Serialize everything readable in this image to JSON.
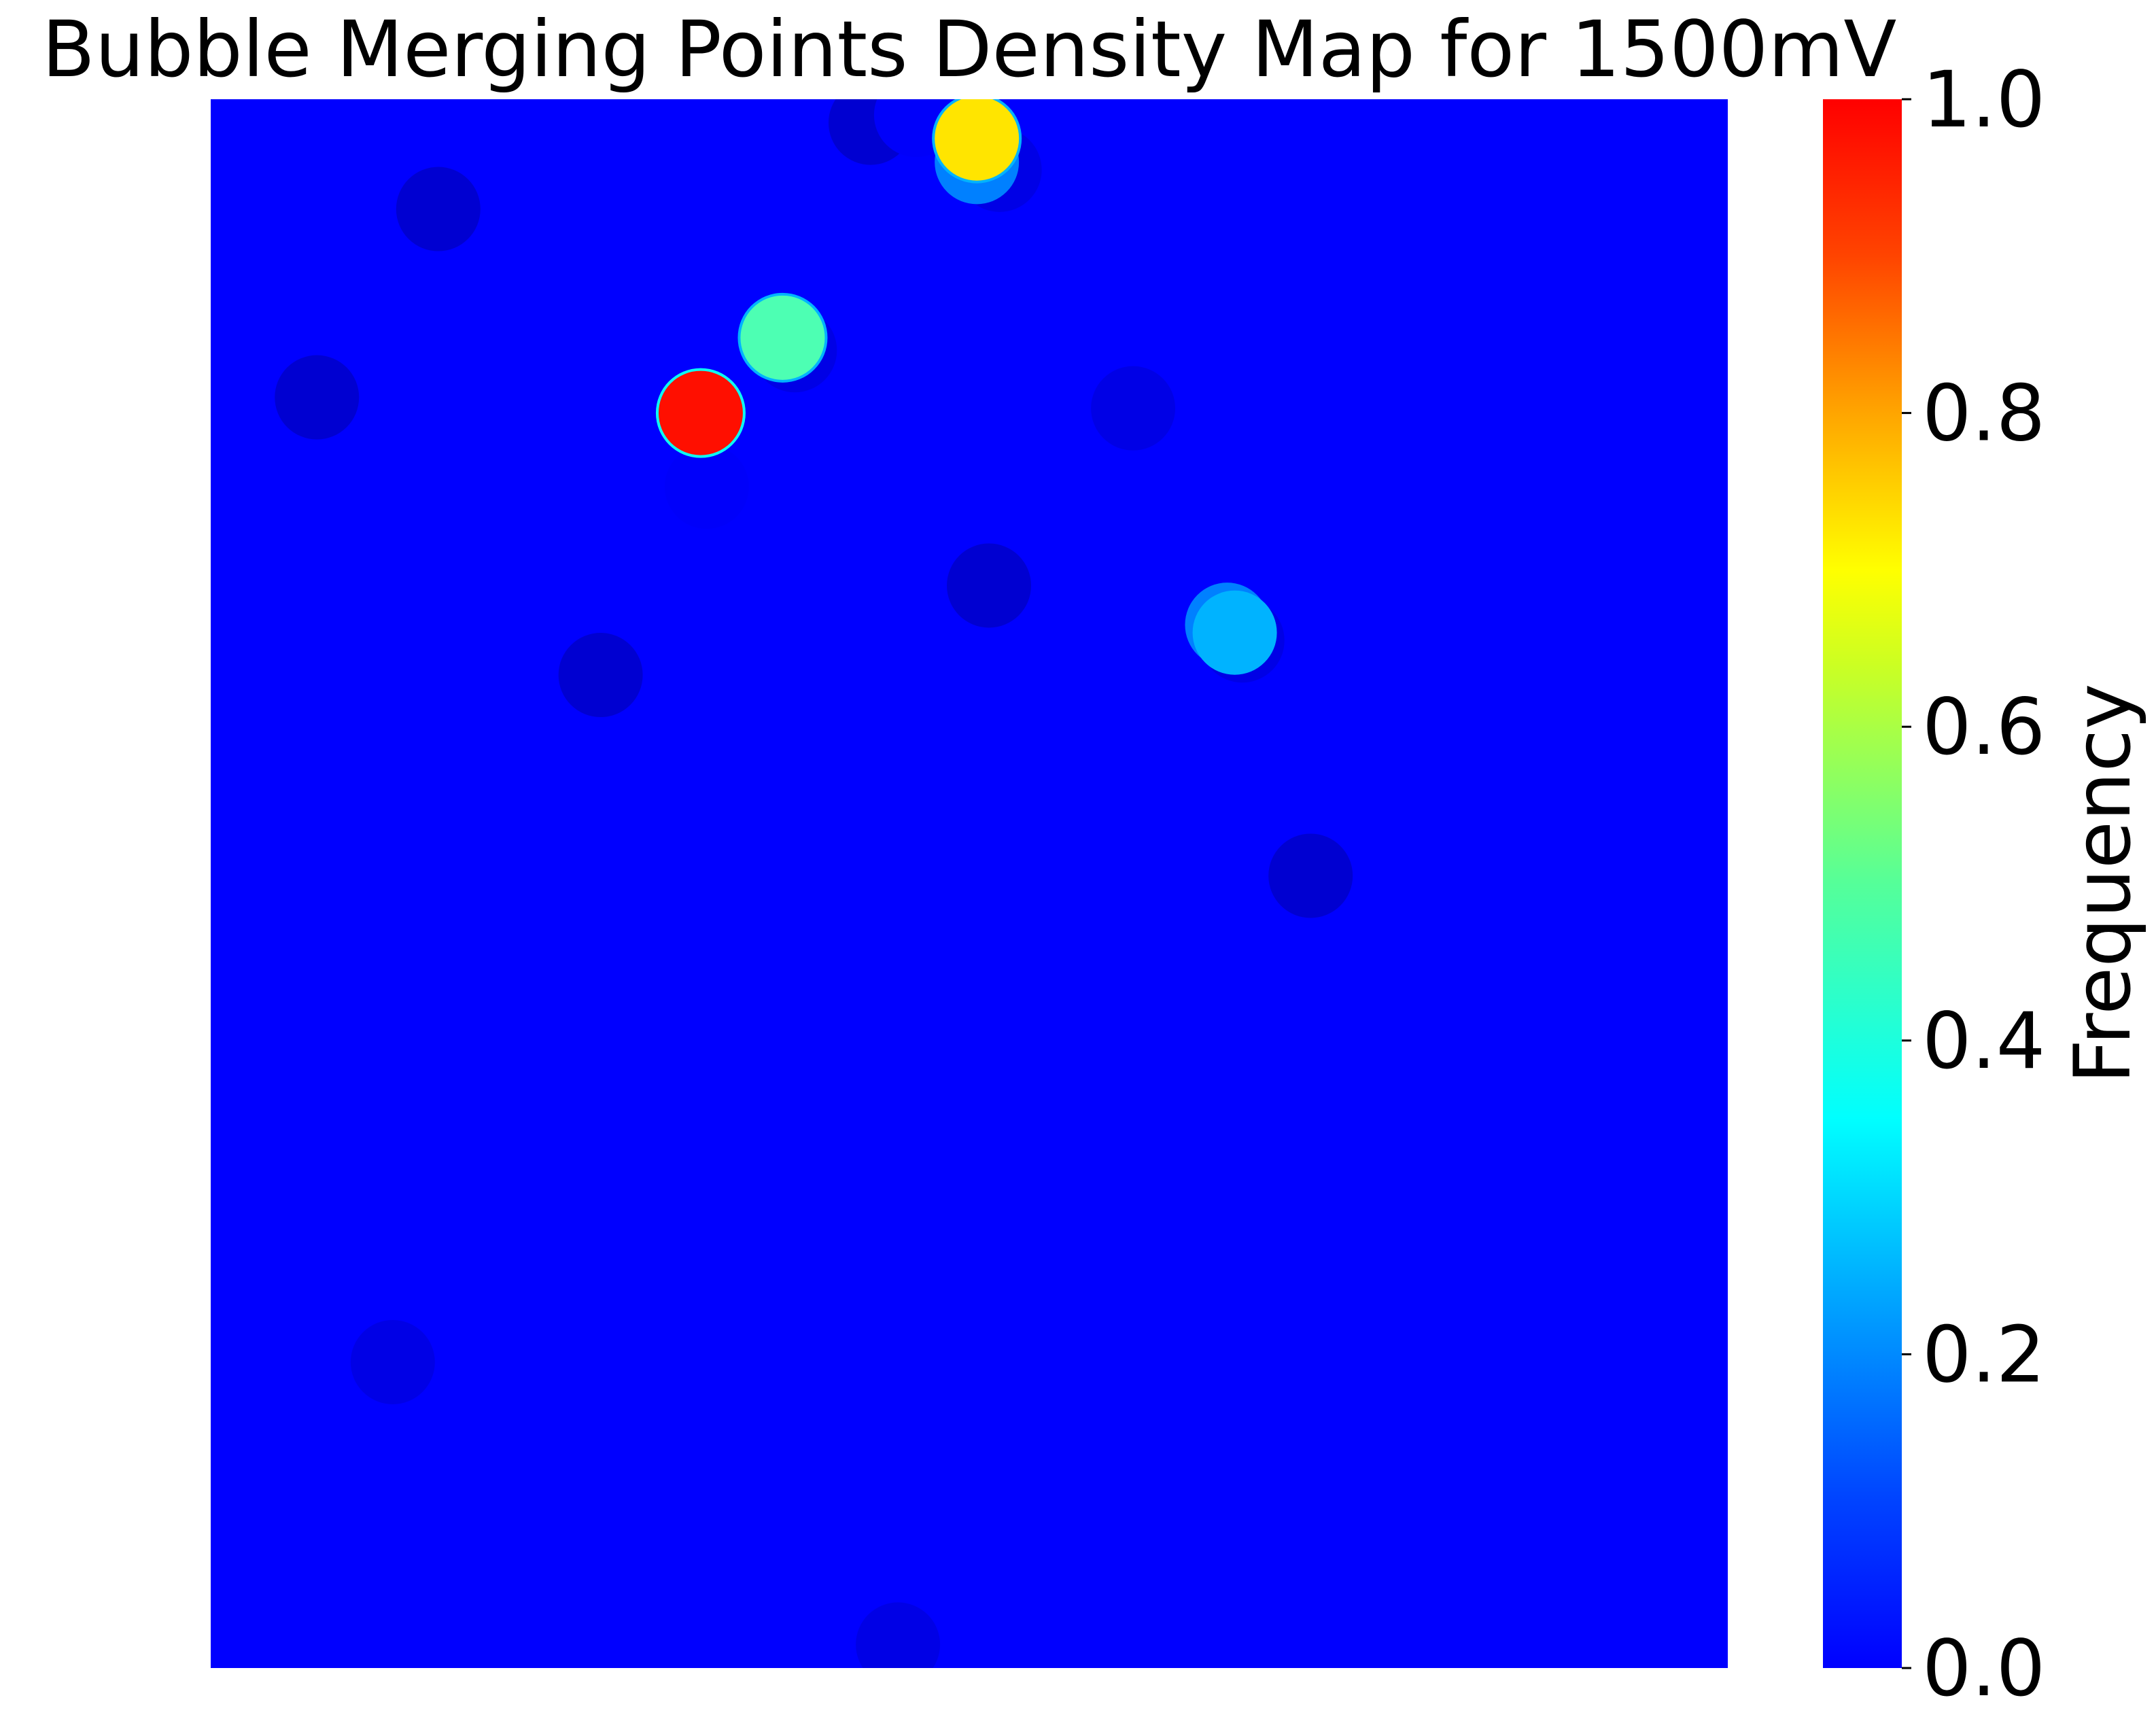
{
  "chart_data": {
    "type": "heatmap",
    "title": "Bubble Merging Points Density Map for 1500mV",
    "xlabel": "",
    "ylabel": "",
    "colormap": "jet",
    "grid": false,
    "axes_visible": false,
    "x_range": [
      0,
      1
    ],
    "y_range": [
      0,
      1
    ],
    "colorbar": {
      "label": "Frequency",
      "range": [
        0.0,
        1.0
      ],
      "ticks": [
        "0.0",
        "0.2",
        "0.4",
        "0.6",
        "0.8",
        "1.0"
      ],
      "position": "right"
    },
    "hotspots": [
      {
        "x": 0.15,
        "y": 0.93,
        "value": 0.08
      },
      {
        "x": 0.07,
        "y": 0.81,
        "value": 0.08
      },
      {
        "x": 0.435,
        "y": 0.985,
        "value": 0.08
      },
      {
        "x": 0.465,
        "y": 0.99,
        "value": 0.12
      },
      {
        "x": 0.52,
        "y": 0.955,
        "value": 0.1
      },
      {
        "x": 0.505,
        "y": 0.96,
        "value": 0.25
      },
      {
        "x": 0.505,
        "y": 0.975,
        "value": 0.65
      },
      {
        "x": 0.385,
        "y": 0.84,
        "value": 0.1
      },
      {
        "x": 0.377,
        "y": 0.848,
        "value": 0.45
      },
      {
        "x": 0.323,
        "y": 0.8,
        "value": 0.86
      },
      {
        "x": 0.327,
        "y": 0.753,
        "value": 0.12
      },
      {
        "x": 0.608,
        "y": 0.803,
        "value": 0.1
      },
      {
        "x": 0.513,
        "y": 0.69,
        "value": 0.08
      },
      {
        "x": 0.68,
        "y": 0.655,
        "value": 0.1
      },
      {
        "x": 0.67,
        "y": 0.665,
        "value": 0.25
      },
      {
        "x": 0.675,
        "y": 0.66,
        "value": 0.3
      },
      {
        "x": 0.257,
        "y": 0.633,
        "value": 0.08
      },
      {
        "x": 0.725,
        "y": 0.505,
        "value": 0.08
      },
      {
        "x": 0.12,
        "y": 0.195,
        "value": 0.1
      },
      {
        "x": 0.453,
        "y": 0.015,
        "value": 0.1
      }
    ]
  }
}
